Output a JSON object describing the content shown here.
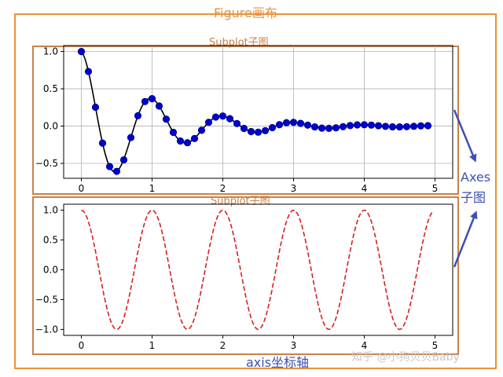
{
  "annotations": {
    "figure_label": "Figure画布",
    "subplot_label_top": "Subplot子图",
    "subplot_label_bottom": "Subplot子图",
    "axes_label_line1": "Axes",
    "axes_label_line2": "子图",
    "axis_label": "axis坐标轴",
    "watermark": "知乎 @小狗贝贝Baby"
  },
  "colors": {
    "figure_frame": "#e8923a",
    "subplot_frame": "#c8824a",
    "annotation_blue": "#3f4fb0",
    "grid": "#b0b0b0",
    "axes_spine": "#000000",
    "top_line": "#000000",
    "top_marker": "#0000cd",
    "bottom_line": "#d62020"
  },
  "chart_data": [
    {
      "type": "line",
      "function": "exp(-t) * cos(2*pi*t)",
      "markers": "circle",
      "series": [
        {
          "x": [
            0.0,
            0.1,
            0.2,
            0.3,
            0.4,
            0.5,
            0.6,
            0.7,
            0.8,
            0.9,
            1.0,
            1.1,
            1.2,
            1.3,
            1.4,
            1.5,
            1.6,
            1.7,
            1.8,
            1.9,
            2.0,
            2.1,
            2.2,
            2.3,
            2.4,
            2.5,
            2.6,
            2.7,
            2.8,
            2.9,
            3.0,
            3.1,
            3.2,
            3.3,
            3.4,
            3.5,
            3.6,
            3.7,
            3.8,
            3.9,
            4.0,
            4.1,
            4.2,
            4.3,
            4.4,
            4.5,
            4.6,
            4.7,
            4.8,
            4.9
          ],
          "values": [
            1.0,
            0.732,
            0.253,
            -0.229,
            -0.542,
            -0.607,
            -0.453,
            -0.153,
            0.139,
            0.329,
            0.368,
            0.269,
            0.093,
            -0.084,
            -0.2,
            -0.223,
            -0.167,
            -0.056,
            0.051,
            0.121,
            0.135,
            0.099,
            0.034,
            -0.031,
            -0.073,
            -0.082,
            -0.061,
            -0.021,
            0.019,
            0.045,
            0.05,
            0.036,
            0.013,
            -0.011,
            -0.027,
            -0.03,
            -0.023,
            -0.008,
            0.007,
            0.016,
            0.018,
            0.013,
            0.005,
            -0.004,
            -0.01,
            -0.011,
            -0.008,
            -0.003,
            0.003,
            0.006
          ]
        }
      ],
      "xlim": [
        -0.25,
        5.25
      ],
      "ylim": [
        -0.7,
        1.08
      ],
      "xticks": [
        0,
        1,
        2,
        3,
        4,
        5
      ],
      "yticks": [
        -0.5,
        0.0,
        0.5,
        1.0
      ],
      "xtick_labels": [
        "0",
        "1",
        "2",
        "3",
        "4",
        "5"
      ],
      "ytick_labels": [
        "−0.5",
        "0.0",
        "0.5",
        "1.0"
      ],
      "grid": true
    },
    {
      "type": "line",
      "function": "cos(2*pi*t)",
      "linestyle": "dashed",
      "series": [
        {
          "x_range": [
            0,
            4.98
          ],
          "samples": 250
        }
      ],
      "xlim": [
        -0.25,
        5.25
      ],
      "ylim": [
        -1.1,
        1.1
      ],
      "xticks": [
        0,
        1,
        2,
        3,
        4,
        5
      ],
      "yticks": [
        -1.0,
        -0.5,
        0.0,
        0.5,
        1.0
      ],
      "xtick_labels": [
        "0",
        "1",
        "2",
        "3",
        "4",
        "5"
      ],
      "ytick_labels": [
        "−1.0",
        "−0.5",
        "0.0",
        "0.5",
        "1.0"
      ],
      "grid": false
    }
  ]
}
